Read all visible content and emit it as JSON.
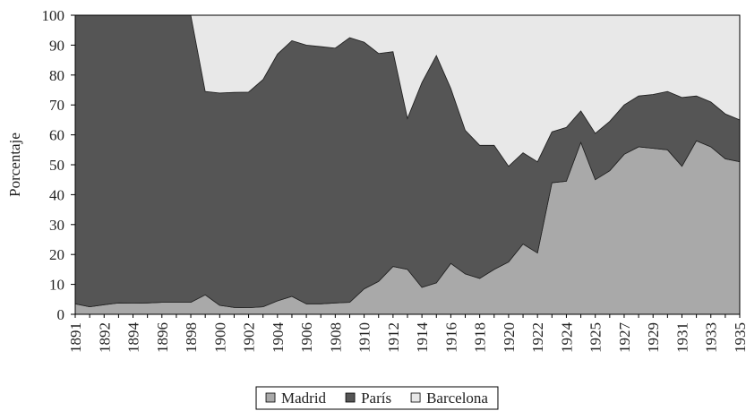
{
  "chart_data": {
    "type": "stacked_area",
    "y_label": "Porcentaje",
    "categories": [
      "1891",
      null,
      "1892",
      null,
      "1894",
      null,
      "1896",
      null,
      "1898",
      null,
      "1900",
      null,
      "1902",
      null,
      "1904",
      null,
      "1906",
      null,
      "1908",
      null,
      "1910",
      null,
      "1912",
      null,
      "1914",
      null,
      "1916",
      null,
      "1918",
      null,
      "1920",
      null,
      "1922",
      null,
      "1924",
      null,
      "1925",
      null,
      "1927",
      null,
      "1929",
      null,
      "1931",
      null,
      "1933",
      null,
      "1935"
    ],
    "series": [
      {
        "name": "Madrid",
        "color": "#a9a9a9",
        "values": [
          3.5,
          2.5,
          3.2,
          3.8,
          3.7,
          3.8,
          4.0,
          4.0,
          4.0,
          6.5,
          3.0,
          2.3,
          2.2,
          2.5,
          4.5,
          6.0,
          3.5,
          3.5,
          3.8,
          4.0,
          8.5,
          11,
          16,
          15,
          9,
          10.5,
          17,
          13.5,
          12,
          15,
          17.5,
          23.5,
          20.5,
          44,
          44.5,
          57.5,
          45,
          48,
          53.5,
          56,
          55.5,
          55,
          49.5,
          58,
          56,
          52,
          51
        ]
      },
      {
        "name": "París",
        "color": "#555555",
        "values": [
          96.5,
          97.5,
          96.8,
          96.2,
          96.3,
          96.2,
          96.0,
          96.0,
          96.0,
          68.0,
          71.0,
          71.9,
          72.1,
          76.0,
          82.5,
          85.5,
          86.5,
          86.0,
          85.2,
          88.5,
          82.5,
          76.2,
          71.8,
          50.5,
          68.5,
          76.0,
          58.5,
          48.0,
          44.5,
          41.5,
          32.0,
          30.5,
          30.5,
          17.0,
          18.0,
          10.5,
          15.5,
          16.5,
          16.5,
          17.0,
          18.0,
          19.5,
          23.0,
          15.0,
          15.0,
          15.0,
          14.0
        ]
      },
      {
        "name": "Barcelona",
        "color": "#e8e8e8",
        "values": [
          0,
          0,
          0,
          0,
          0,
          0,
          0,
          0,
          0,
          25.5,
          26.0,
          25.8,
          25.7,
          21.5,
          13.0,
          8.5,
          10.0,
          10.5,
          11.0,
          7.5,
          9.0,
          12.8,
          12.2,
          34.5,
          22.5,
          13.5,
          24.5,
          38.5,
          43.5,
          43.5,
          50.5,
          46.0,
          49.0,
          39.0,
          37.5,
          32.0,
          39.5,
          35.5,
          30.0,
          27.0,
          26.5,
          25.5,
          27.5,
          27.0,
          29.0,
          33.0,
          35.0
        ]
      }
    ],
    "ylim": [
      0,
      100
    ],
    "yticks": [
      0,
      10,
      20,
      30,
      40,
      50,
      60,
      70,
      80,
      90,
      100
    ],
    "legend": "bottom"
  }
}
